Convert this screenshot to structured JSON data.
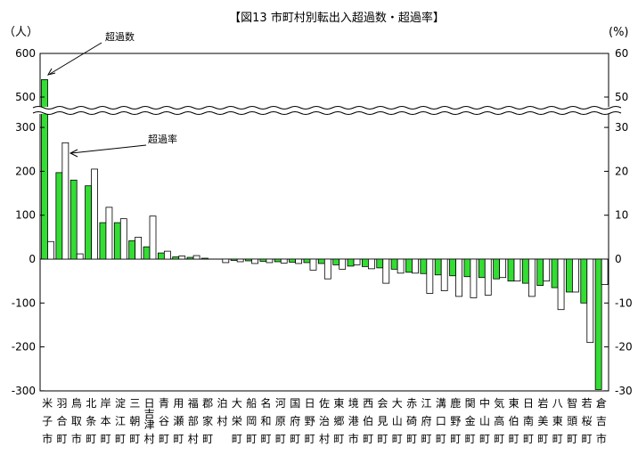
{
  "chart_data": {
    "type": "bar",
    "title": "【図13 市町村別転出入超過数・超過率】",
    "y_left_unit": "（人）",
    "y_right_unit": "(%)",
    "y_left_ticks": [
      "600",
      "500",
      "300",
      "200",
      "100",
      "0",
      "-100",
      "-200",
      "-300"
    ],
    "y_right_ticks": [
      "60",
      "50",
      "30",
      "20",
      "10",
      "0",
      "-10",
      "-20",
      "-30"
    ],
    "ylim_left": [
      -300,
      600
    ],
    "ylim_right": [
      -30,
      60
    ],
    "axis_break": "between 300/30 and 500/50",
    "annotations": {
      "count": "超過数",
      "rate": "超過率"
    },
    "series": [
      {
        "name": "超過数",
        "axis": "left",
        "color": "#33dd33"
      },
      {
        "name": "超過率",
        "axis": "right",
        "color": "#ffffff"
      }
    ],
    "categories": [
      "米子市",
      "羽合町",
      "鳥取市",
      "北条町",
      "岸本町",
      "淀江町",
      "三朝町",
      "日吉津村",
      "青谷町",
      "用瀬町",
      "福部村",
      "郡家町",
      "泊村",
      "大栄町",
      "船岡町",
      "名和町",
      "河原町",
      "国府町",
      "日野町",
      "佐治村",
      "東郷町",
      "境港市",
      "西伯町",
      "会見町",
      "大山町",
      "赤碕町",
      "江府町",
      "溝口町",
      "鹿野町",
      "関金町",
      "中山町",
      "気高町",
      "東伯町",
      "日南町",
      "岩美町",
      "八東町",
      "智頭町",
      "若桜町",
      "倉吉市"
    ],
    "values_count": [
      540,
      197,
      180,
      167,
      83,
      83,
      42,
      28,
      14,
      5,
      4,
      2,
      0,
      -3,
      -4,
      -5,
      -6,
      -7,
      -8,
      -10,
      -13,
      -16,
      -17,
      -20,
      -23,
      -30,
      -33,
      -36,
      -38,
      -40,
      -42,
      -45,
      -50,
      -55,
      -60,
      -65,
      -75,
      -100,
      -297
    ],
    "values_rate": [
      4,
      26.5,
      1.2,
      20.5,
      11.8,
      9.2,
      5,
      9.8,
      1.8,
      0.7,
      0.8,
      0,
      -0.8,
      -0.6,
      -1,
      -0.8,
      -0.9,
      -1,
      -2.5,
      -4.5,
      -2.3,
      -1.3,
      -2.2,
      -5.5,
      -3.2,
      -3.2,
      -7.8,
      -7.2,
      -8.5,
      -8.8,
      -8.2,
      -4.2,
      -5,
      -8.5,
      -5,
      -11.5,
      -7.5,
      -19,
      -5.8
    ]
  }
}
